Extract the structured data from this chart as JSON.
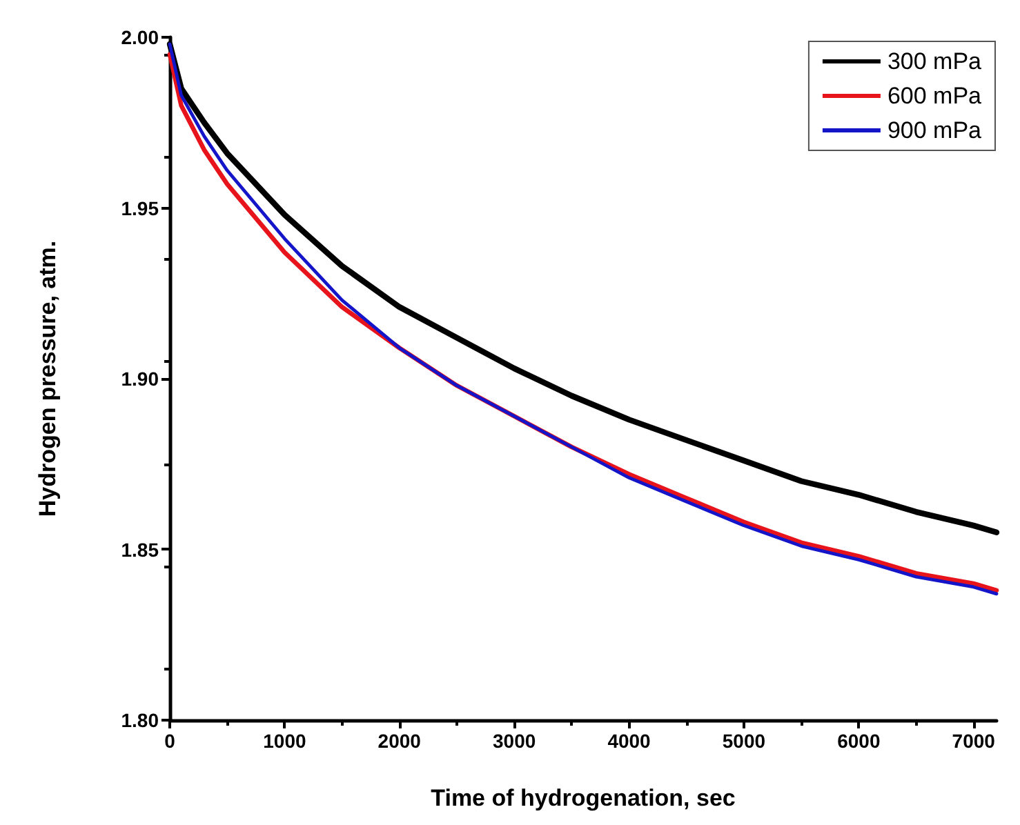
{
  "chart_data": {
    "type": "line",
    "xlabel": "Time of hydrogenation, sec",
    "ylabel": "Hydrogen pressure, atm.",
    "x": [
      0,
      100,
      300,
      500,
      1000,
      1500,
      2000,
      2500,
      3000,
      3500,
      4000,
      4500,
      5000,
      5500,
      6000,
      6500,
      7000,
      7200
    ],
    "series": [
      {
        "name": "300 mPa",
        "color": "#000000",
        "values": [
          1.998,
          1.985,
          1.975,
          1.966,
          1.948,
          1.933,
          1.921,
          1.912,
          1.903,
          1.895,
          1.888,
          1.882,
          1.876,
          1.87,
          1.866,
          1.861,
          1.857,
          1.855
        ]
      },
      {
        "name": "600 mPa",
        "color": "#e8141c",
        "values": [
          1.995,
          1.98,
          1.967,
          1.957,
          1.937,
          1.921,
          1.909,
          1.898,
          1.889,
          1.88,
          1.872,
          1.865,
          1.858,
          1.852,
          1.848,
          1.843,
          1.84,
          1.838
        ]
      },
      {
        "name": "900 mPa",
        "color": "#1414c8",
        "values": [
          1.998,
          1.983,
          1.971,
          1.961,
          1.941,
          1.923,
          1.909,
          1.898,
          1.889,
          1.88,
          1.871,
          1.864,
          1.857,
          1.851,
          1.847,
          1.842,
          1.839,
          1.837
        ]
      }
    ],
    "xlim": [
      0,
      7200
    ],
    "xticks": [
      0,
      1000,
      2000,
      3000,
      4000,
      5000,
      6000,
      7000
    ],
    "ylim": [
      1.8,
      2.0
    ],
    "yticks": [
      {
        "value": 1.8,
        "label": "1.80"
      },
      {
        "value": 1.85,
        "label": "1.85"
      },
      {
        "value": 1.9,
        "label": "1.90"
      },
      {
        "value": 1.95,
        "label": "1.95"
      },
      {
        "value": 2.0,
        "label": "2.00"
      }
    ],
    "grid": false,
    "legend": "top right",
    "marker": "none",
    "line_style": "solid"
  }
}
